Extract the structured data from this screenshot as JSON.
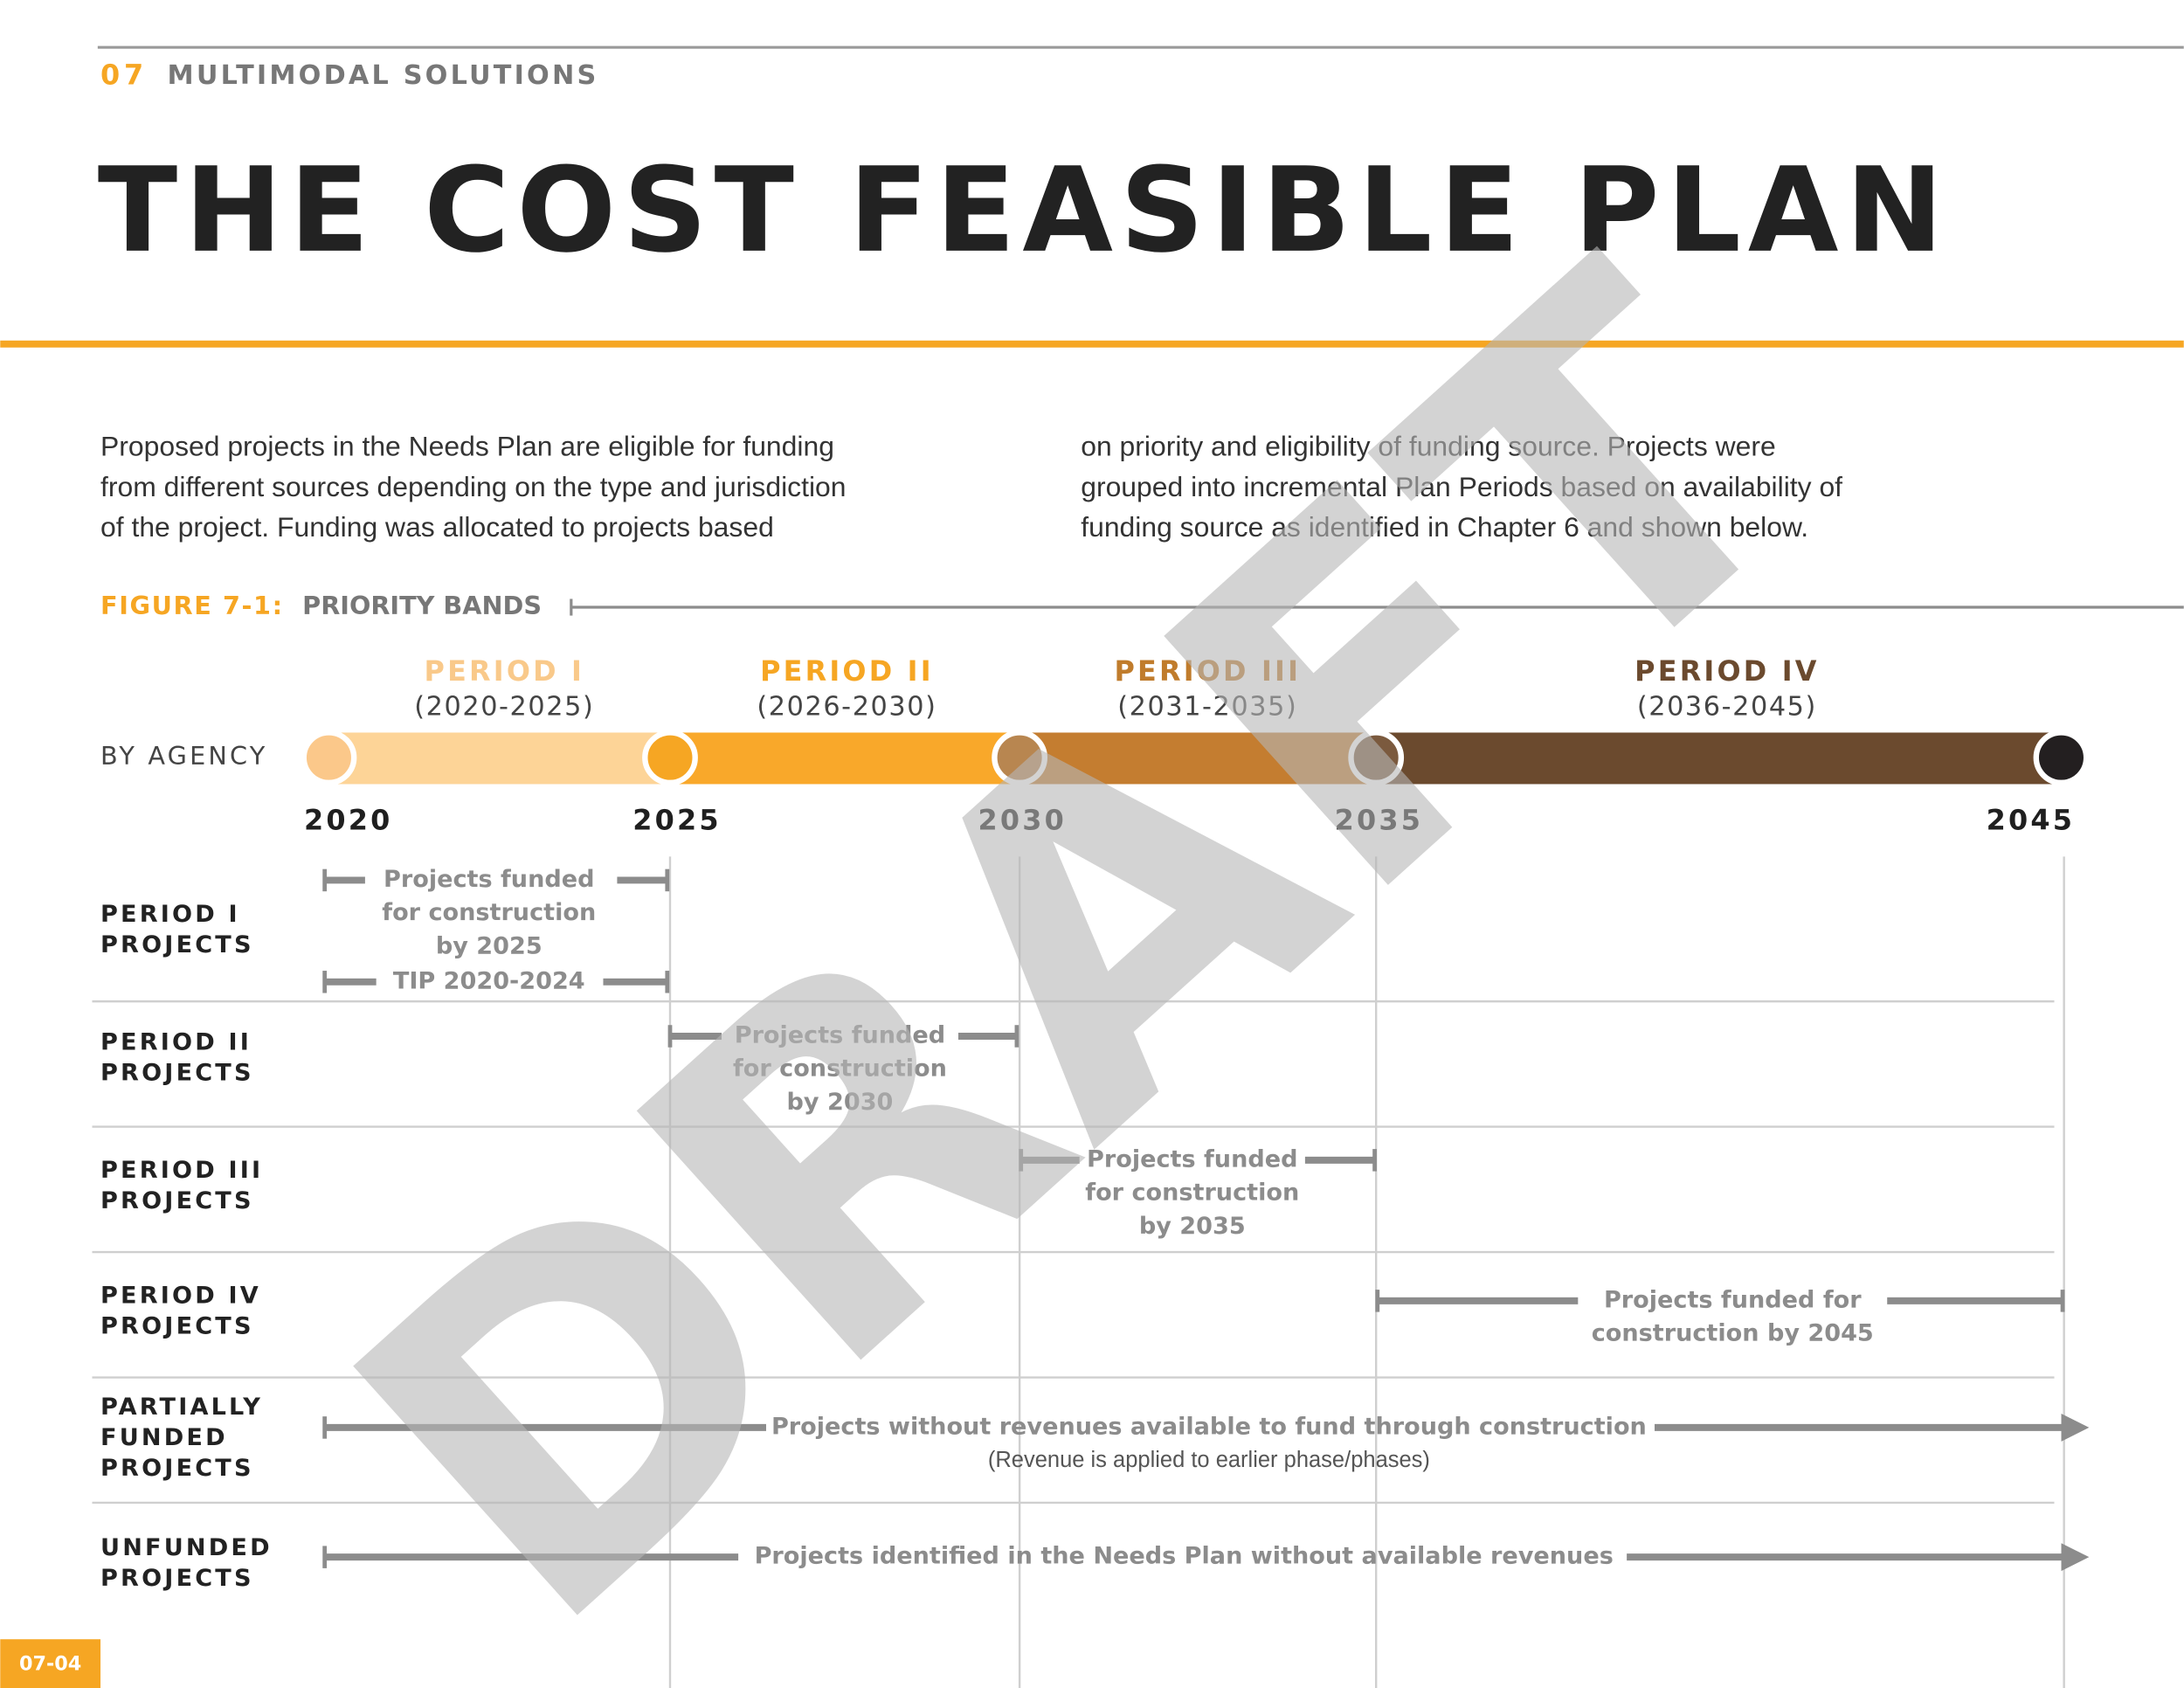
{
  "header": {
    "section_number": "07",
    "section_title": "MULTIMODAL SOLUTIONS",
    "title": "THE COST FEASIBLE PLAN"
  },
  "intro": {
    "left_lines": [
      "Proposed projects in the Needs Plan are eligible for funding",
      "from different sources depending on the type and jurisdiction",
      "of the project.  Funding was allocated to projects based"
    ],
    "right_lines": [
      "on priority and eligibility of funding source. Projects were",
      "grouped into incremental Plan Periods based on availability of",
      "funding source as identified in Chapter 6 and shown below."
    ]
  },
  "figure": {
    "label": "FIGURE 7-1:",
    "title": "PRIORITY BANDS",
    "band_label": "BY AGENCY",
    "periods": [
      {
        "name": "PERIOD I",
        "years": "(2020-2025)"
      },
      {
        "name": "PERIOD II",
        "years": "(2026-2030)"
      },
      {
        "name": "PERIOD III",
        "years": "(2031-2035)"
      },
      {
        "name": "PERIOD IV",
        "years": "(2036-2045)"
      }
    ],
    "milestones": [
      "2020",
      "2025",
      "2030",
      "2035",
      "2045"
    ],
    "rows": [
      {
        "label": [
          "PERIOD I",
          "PROJECTS"
        ],
        "description": [
          "Projects funded",
          "for construction",
          "by 2025"
        ],
        "sub_range": "TIP 2020-2024"
      },
      {
        "label": [
          "PERIOD II",
          "PROJECTS"
        ],
        "description": [
          "Projects funded",
          "for construction",
          "by 2030"
        ]
      },
      {
        "label": [
          "PERIOD III",
          "PROJECTS"
        ],
        "description": [
          "Projects funded",
          "for construction",
          "by 2035"
        ]
      },
      {
        "label": [
          "PERIOD IV",
          "PROJECTS"
        ],
        "description": [
          "Projects funded for",
          "construction by 2045"
        ]
      },
      {
        "label": [
          "PARTIALLY",
          "FUNDED",
          "PROJECTS"
        ],
        "description": [
          "Projects without revenues available to fund  through construction"
        ],
        "note": "(Revenue is applied to earlier phase/phases)"
      },
      {
        "label": [
          "UNFUNDED",
          "PROJECTS"
        ],
        "description": [
          "Projects identified in the Needs Plan without available revenues"
        ]
      }
    ]
  },
  "watermark": "DRAFT",
  "page_number": "07-04"
}
